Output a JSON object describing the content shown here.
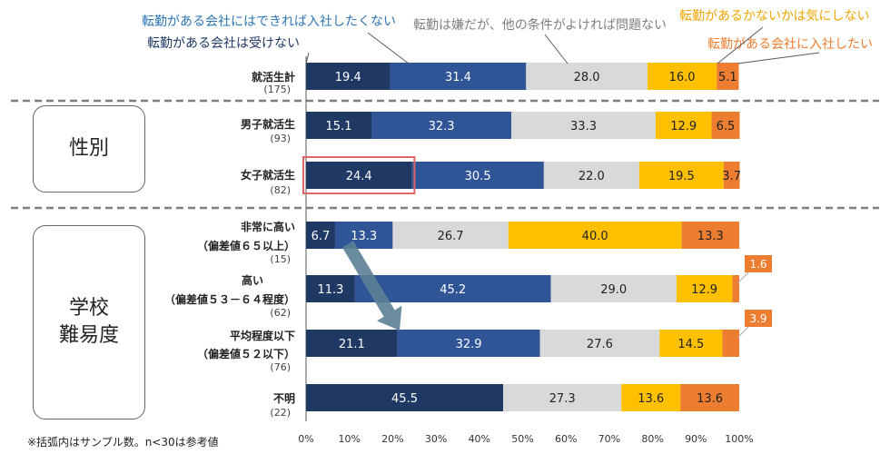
{
  "legend": {
    "cannot_accept": "転勤がある会社は受けない",
    "avoid_if_possible": "転勤がある会社にはできれば入社したくない",
    "dislike_but_ok": "転勤は嫌だが、他の条件がよければ問題ない",
    "dont_care": "転勤があるかないかは気にしない",
    "want_transfer": "転勤がある会社に入社したい"
  },
  "groups": {
    "gender": "性別",
    "school_line1": "学校",
    "school_line2": "難易度"
  },
  "footnote": "※括弧内はサンプル数。n<30は参考値",
  "colors": [
    "#1f3864",
    "#2f5597",
    "#d9d9d9",
    "#ffc000",
    "#ed7d31"
  ],
  "chart_data": {
    "type": "bar",
    "orientation": "horizontal",
    "stacked": true,
    "percent_stacked": true,
    "xlim": [
      0,
      100
    ],
    "xticks": [
      "0%",
      "10%",
      "20%",
      "30%",
      "40%",
      "50%",
      "60%",
      "70%",
      "80%",
      "90%",
      "100%"
    ],
    "series": [
      {
        "name": "転勤がある会社は受けない"
      },
      {
        "name": "転勤がある会社にはできれば入社したくない"
      },
      {
        "name": "転勤は嫌だが、他の条件がよければ問題ない"
      },
      {
        "name": "転勤があるかないかは気にしない"
      },
      {
        "name": "転勤がある会社に入社したい"
      }
    ],
    "rows": [
      {
        "label": [
          "就活生計"
        ],
        "n": "(175)",
        "values": [
          19.4,
          31.4,
          28.0,
          16.0,
          5.1
        ]
      },
      {
        "label": [
          "男子就活生"
        ],
        "n": "(93)",
        "values": [
          15.1,
          32.3,
          33.3,
          12.9,
          6.5
        ]
      },
      {
        "label": [
          "女子就活生"
        ],
        "n": "(82)",
        "values": [
          24.4,
          30.5,
          22.0,
          19.5,
          3.7
        ],
        "highlight_segment": 0
      },
      {
        "label": [
          "非常に高い",
          "（偏差値６５以上）"
        ],
        "n": "(15)",
        "values": [
          6.7,
          13.3,
          26.7,
          40.0,
          13.3
        ]
      },
      {
        "label": [
          "高い",
          "（偏差値５３－６４程度）"
        ],
        "n": "(62)",
        "values": [
          11.3,
          45.2,
          29.0,
          12.9,
          1.6
        ],
        "callout_last": true
      },
      {
        "label": [
          "平均程度以下",
          "（偏差値５２以下）"
        ],
        "n": "(76)",
        "values": [
          21.1,
          32.9,
          27.6,
          14.5,
          3.9
        ],
        "callout_last": true
      },
      {
        "label": [
          "不明"
        ],
        "n": "(22)",
        "values": [
          45.5,
          0,
          27.3,
          13.6,
          13.6
        ]
      }
    ],
    "value_labels": [
      [
        "19.4",
        "31.4",
        "28.0",
        "16.0",
        "5.1"
      ],
      [
        "15.1",
        "32.3",
        "33.3",
        "12.9",
        "6.5"
      ],
      [
        "24.4",
        "30.5",
        "22.0",
        "19.5",
        "3.7"
      ],
      [
        "6.7",
        "13.3",
        "26.7",
        "40.0",
        "13.3"
      ],
      [
        "11.3",
        "45.2",
        "29.0",
        "12.9",
        "1.6"
      ],
      [
        "21.1",
        "32.9",
        "27.6",
        "14.5",
        "3.9"
      ],
      [
        "45.5",
        "",
        "27.3",
        "13.6",
        "13.6"
      ]
    ],
    "annotation": {
      "type": "arrow",
      "from_row": 3,
      "to_row": 5,
      "meaning": "trend"
    }
  }
}
